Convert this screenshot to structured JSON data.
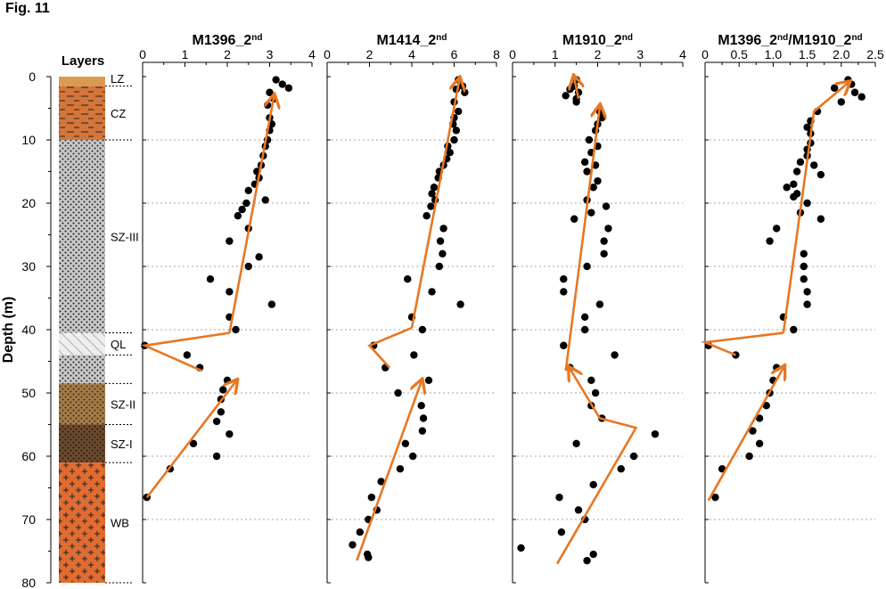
{
  "figure_label": "Fig. 11",
  "colors": {
    "trend": "#e87722",
    "points": "#000000",
    "gridline": "#888888",
    "lz": "#d99a52",
    "cz": "#d4763a",
    "sz3": "#c8c8c8",
    "ql": "#e6e6e6",
    "sz2": "#a67a44",
    "sz1": "#6b4a2c",
    "wb": "#e06c32"
  },
  "chart_data": [
    {
      "type": "strip_log",
      "title": "Layers",
      "ylabel": "Depth (m)",
      "ylim": [
        0,
        80
      ],
      "y_ticks": [
        0,
        10,
        20,
        30,
        40,
        50,
        60,
        70,
        80
      ],
      "layers": [
        {
          "label": "LZ",
          "top": 0,
          "bottom": 1.5,
          "pattern": "plain",
          "color": "#d99a52"
        },
        {
          "label": "CZ",
          "top": 1.5,
          "bottom": 10,
          "pattern": "dash",
          "color": "#d4763a"
        },
        {
          "label": "SZ-III",
          "top": 10,
          "bottom": 40.5,
          "pattern": "dots",
          "color": "#c8c8c8"
        },
        {
          "label": "QL",
          "top": 40.5,
          "bottom": 44,
          "pattern": "hatch",
          "color": "#e6e6e6"
        },
        {
          "label": "",
          "top": 44,
          "bottom": 48.5,
          "pattern": "dots",
          "color": "#c8c8c8"
        },
        {
          "label": "SZ-II",
          "top": 48.5,
          "bottom": 55,
          "pattern": "dots",
          "color": "#a67a44"
        },
        {
          "label": "SZ-I",
          "top": 55,
          "bottom": 61,
          "pattern": "dots",
          "color": "#6b4a2c"
        },
        {
          "label": "WB",
          "top": 61,
          "bottom": 80,
          "pattern": "plus",
          "color": "#e06c32"
        }
      ],
      "boundaries": [
        1.5,
        10,
        40.5,
        44,
        48.5,
        55,
        61,
        80
      ]
    },
    {
      "type": "scatter",
      "title_main": "M1396_2",
      "title_sup": "nd",
      "xlim": [
        0,
        4
      ],
      "x_ticks": [
        0,
        1,
        2,
        3,
        4
      ],
      "ylim": [
        0,
        80
      ],
      "points": [
        [
          3.15,
          0.5
        ],
        [
          3.3,
          1.2
        ],
        [
          3.45,
          1.8
        ],
        [
          3.0,
          2.5
        ],
        [
          3.1,
          3.5
        ],
        [
          2.95,
          4.5
        ],
        [
          3.0,
          6.5
        ],
        [
          3.05,
          7.5
        ],
        [
          3.0,
          8.5
        ],
        [
          2.95,
          10
        ],
        [
          2.9,
          11
        ],
        [
          2.85,
          12.5
        ],
        [
          2.8,
          14
        ],
        [
          2.7,
          15
        ],
        [
          2.75,
          16
        ],
        [
          2.65,
          17
        ],
        [
          2.5,
          18
        ],
        [
          2.9,
          19.5
        ],
        [
          2.45,
          20
        ],
        [
          2.35,
          21
        ],
        [
          2.25,
          22
        ],
        [
          2.5,
          24
        ],
        [
          2.05,
          26
        ],
        [
          2.75,
          28.5
        ],
        [
          2.5,
          30
        ],
        [
          1.6,
          32
        ],
        [
          2.05,
          34
        ],
        [
          3.05,
          36
        ],
        [
          2.05,
          38
        ],
        [
          2.2,
          40
        ],
        [
          0.05,
          42.5
        ],
        [
          1.05,
          44
        ],
        [
          1.35,
          46
        ],
        [
          2.0,
          48
        ],
        [
          1.9,
          49.5
        ],
        [
          1.85,
          51
        ],
        [
          1.85,
          53
        ],
        [
          1.75,
          54.5
        ],
        [
          2.05,
          56.5
        ],
        [
          1.2,
          58
        ],
        [
          1.75,
          60
        ],
        [
          0.65,
          62
        ],
        [
          0.1,
          66.5
        ]
      ],
      "trend_upper": [
        [
          2.05,
          40.5
        ],
        [
          3.1,
          3.2
        ]
      ],
      "trend_ql": [
        [
          2.05,
          40.5
        ],
        [
          0.05,
          42.5
        ],
        [
          1.4,
          46.5
        ]
      ],
      "trend_lower": [
        [
          0.1,
          66.5
        ],
        [
          2.2,
          48.2
        ]
      ]
    },
    {
      "type": "scatter",
      "title_main": "M1414_2",
      "title_sup": "nd",
      "xlim": [
        0,
        8
      ],
      "x_ticks": [
        0,
        2,
        4,
        6,
        8
      ],
      "ylim": [
        0,
        80
      ],
      "points": [
        [
          6.2,
          0.5
        ],
        [
          6.4,
          1.5
        ],
        [
          6.1,
          2
        ],
        [
          6.5,
          2.5
        ],
        [
          6.0,
          4
        ],
        [
          6.2,
          5.5
        ],
        [
          6.0,
          6.5
        ],
        [
          5.95,
          7.5
        ],
        [
          6.1,
          8.5
        ],
        [
          6.0,
          10
        ],
        [
          5.7,
          11
        ],
        [
          5.8,
          12
        ],
        [
          5.65,
          13
        ],
        [
          5.5,
          14
        ],
        [
          5.3,
          15
        ],
        [
          5.25,
          16
        ],
        [
          5.05,
          17.5
        ],
        [
          4.95,
          18.5
        ],
        [
          5.1,
          19.5
        ],
        [
          4.9,
          20.5
        ],
        [
          4.7,
          22
        ],
        [
          5.5,
          24
        ],
        [
          5.35,
          26
        ],
        [
          5.45,
          28
        ],
        [
          5.3,
          30
        ],
        [
          3.8,
          32
        ],
        [
          4.95,
          34
        ],
        [
          6.3,
          36
        ],
        [
          4.0,
          38
        ],
        [
          4.5,
          40
        ],
        [
          2.2,
          42.5
        ],
        [
          4.1,
          44
        ],
        [
          2.75,
          46
        ],
        [
          4.8,
          48
        ],
        [
          3.35,
          50
        ],
        [
          4.45,
          52
        ],
        [
          4.55,
          54
        ],
        [
          4.5,
          56
        ],
        [
          3.7,
          58
        ],
        [
          4.05,
          60
        ],
        [
          3.45,
          62
        ],
        [
          2.55,
          64
        ],
        [
          2.1,
          66.5
        ],
        [
          2.35,
          68.5
        ],
        [
          1.95,
          70
        ],
        [
          1.55,
          72
        ],
        [
          1.2,
          74
        ],
        [
          1.9,
          75.5
        ],
        [
          1.95,
          76
        ]
      ],
      "trend_upper": [
        [
          4.0,
          39.7
        ],
        [
          6.25,
          0.5
        ]
      ],
      "trend_ql": [
        [
          4.0,
          39.7
        ],
        [
          2.0,
          42.5
        ],
        [
          2.95,
          46
        ]
      ],
      "trend_lower": [
        [
          1.4,
          76.5
        ],
        [
          4.45,
          48.2
        ]
      ]
    },
    {
      "type": "scatter",
      "title_main": "M1910_2",
      "title_sup": "nd",
      "xlim": [
        0,
        4
      ],
      "x_ticks": [
        0,
        1,
        2,
        3,
        4
      ],
      "ylim": [
        0,
        80
      ],
      "points": [
        [
          1.5,
          0.5
        ],
        [
          1.45,
          1.5
        ],
        [
          1.35,
          2
        ],
        [
          1.55,
          2.5
        ],
        [
          1.5,
          3.5
        ],
        [
          1.25,
          3
        ],
        [
          1.5,
          4
        ],
        [
          2.05,
          5.5
        ],
        [
          2.1,
          6.5
        ],
        [
          2.0,
          7.5
        ],
        [
          1.95,
          8.5
        ],
        [
          1.8,
          10
        ],
        [
          2.0,
          11
        ],
        [
          1.85,
          12
        ],
        [
          1.7,
          13.5
        ],
        [
          1.95,
          14
        ],
        [
          1.75,
          15
        ],
        [
          2.0,
          16.5
        ],
        [
          1.9,
          17.5
        ],
        [
          1.75,
          19.5
        ],
        [
          2.2,
          20.5
        ],
        [
          1.85,
          21.5
        ],
        [
          1.45,
          22.5
        ],
        [
          2.25,
          24
        ],
        [
          2.15,
          26
        ],
        [
          2.15,
          28
        ],
        [
          1.75,
          30
        ],
        [
          1.2,
          32
        ],
        [
          1.2,
          34
        ],
        [
          2.05,
          36
        ],
        [
          1.7,
          38
        ],
        [
          1.7,
          40
        ],
        [
          1.2,
          42.5
        ],
        [
          2.4,
          44
        ],
        [
          1.35,
          46
        ],
        [
          1.85,
          48
        ],
        [
          1.95,
          50
        ],
        [
          1.85,
          52
        ],
        [
          2.1,
          54
        ],
        [
          3.35,
          56.5
        ],
        [
          1.5,
          58
        ],
        [
          2.85,
          60
        ],
        [
          2.55,
          62
        ],
        [
          1.9,
          64.5
        ],
        [
          1.1,
          66.5
        ],
        [
          1.55,
          68.5
        ],
        [
          1.7,
          70
        ],
        [
          1.15,
          72
        ],
        [
          0.2,
          74.5
        ],
        [
          1.9,
          75.5
        ],
        [
          1.75,
          76.5
        ]
      ],
      "trend_upper": [
        [
          1.25,
          46.5
        ],
        [
          2.05,
          4.8
        ]
      ],
      "trend_ql": [],
      "trend_lower": [
        [
          1.05,
          77
        ],
        [
          2.9,
          55.5
        ],
        [
          2.05,
          54
        ],
        [
          1.35,
          46.2
        ]
      ],
      "trend_top": [
        [
          1.55,
          3.5
        ],
        [
          1.45,
          0.2
        ]
      ]
    },
    {
      "type": "scatter",
      "title_main": "M1396_2",
      "title_sup": "nd",
      "title_main2": "/M1910_2",
      "title_sup2": "nd",
      "xlim": [
        0,
        2.5
      ],
      "x_ticks": [
        0,
        0.5,
        1.0,
        1.5,
        2.0,
        2.5
      ],
      "x_tick_labels": [
        "0",
        "0.5",
        "1.0",
        "1.5",
        "2.0",
        "2.5"
      ],
      "ylim": [
        0,
        80
      ],
      "points": [
        [
          2.1,
          0.5
        ],
        [
          2.15,
          1.2
        ],
        [
          1.9,
          1.8
        ],
        [
          2.2,
          2.5
        ],
        [
          2.3,
          3.2
        ],
        [
          2.0,
          4
        ],
        [
          1.65,
          5.5
        ],
        [
          1.55,
          7
        ],
        [
          1.5,
          8
        ],
        [
          1.55,
          9
        ],
        [
          1.55,
          10.5
        ],
        [
          1.5,
          11.5
        ],
        [
          1.5,
          12.5
        ],
        [
          1.4,
          13.5
        ],
        [
          1.6,
          14
        ],
        [
          1.35,
          15
        ],
        [
          1.7,
          15.5
        ],
        [
          1.3,
          17
        ],
        [
          1.2,
          17.5
        ],
        [
          1.35,
          18.5
        ],
        [
          1.3,
          19
        ],
        [
          1.5,
          20
        ],
        [
          1.4,
          21.5
        ],
        [
          1.7,
          22.5
        ],
        [
          1.05,
          24
        ],
        [
          0.95,
          26
        ],
        [
          1.45,
          28
        ],
        [
          1.45,
          30
        ],
        [
          1.45,
          32
        ],
        [
          1.5,
          34
        ],
        [
          1.5,
          36
        ],
        [
          1.15,
          38
        ],
        [
          1.3,
          40
        ],
        [
          0.05,
          42.5
        ],
        [
          0.45,
          44
        ],
        [
          1.05,
          46
        ],
        [
          1.0,
          48
        ],
        [
          0.95,
          50
        ],
        [
          0.9,
          52
        ],
        [
          0.8,
          54
        ],
        [
          0.7,
          56
        ],
        [
          0.8,
          58
        ],
        [
          0.65,
          60
        ],
        [
          0.25,
          62
        ],
        [
          0.15,
          66.5
        ]
      ],
      "trend_upper": [
        [
          1.15,
          40.5
        ],
        [
          1.6,
          5.5
        ],
        [
          2.1,
          1.0
        ]
      ],
      "trend_ql": [
        [
          1.15,
          40.5
        ],
        [
          0.0,
          42
        ],
        [
          0.45,
          44
        ]
      ],
      "trend_lower": [
        [
          0.05,
          67
        ],
        [
          1.15,
          46
        ]
      ]
    }
  ]
}
